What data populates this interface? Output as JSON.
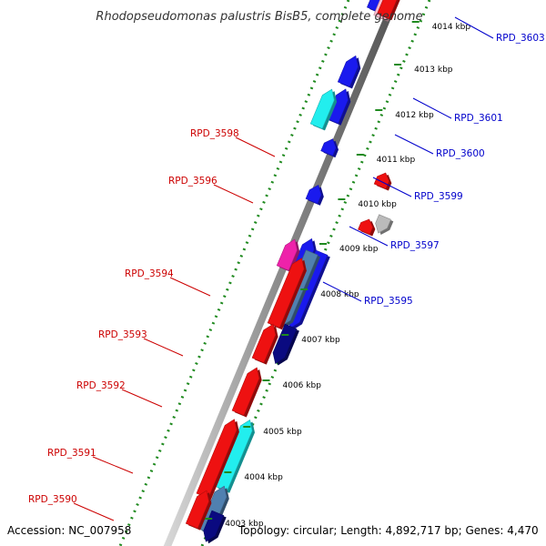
{
  "title": "Rhodopseudomonas palustris BisB5, complete genome",
  "footer": {
    "accession": "Accession: NC_007958",
    "summary": "Topology: circular; Length: 4,892,717 bp; Genes: 4,470"
  },
  "colors": {
    "forward_label": "#cc0000",
    "reverse_label": "#0000cc",
    "scale": "#1f8a1f",
    "red": "#ee1111",
    "blue": "#1a1aee",
    "navy": "#0a0a80",
    "cyan": "#22eeee",
    "magenta": "#ee22aa",
    "gray": "#bbbbbb",
    "steel": "#5080b0",
    "pink": "#ffbbcc"
  },
  "kbp_ticks": [
    "4003 kbp",
    "4004 kbp",
    "4005 kbp",
    "4006 kbp",
    "4007 kbp",
    "4008 kbp",
    "4009 kbp",
    "4010 kbp",
    "4011 kbp",
    "4012 kbp",
    "4013 kbp",
    "4014 kbp"
  ],
  "forward_labels": [
    "RPD_3598",
    "RPD_3596",
    "RPD_3594",
    "RPD_3593",
    "RPD_3592",
    "RPD_3591",
    "RPD_3590"
  ],
  "reverse_labels": [
    "RPD_3603",
    "RPD_3601",
    "RPD_3600",
    "RPD_3599",
    "RPD_3597",
    "RPD_3595"
  ]
}
